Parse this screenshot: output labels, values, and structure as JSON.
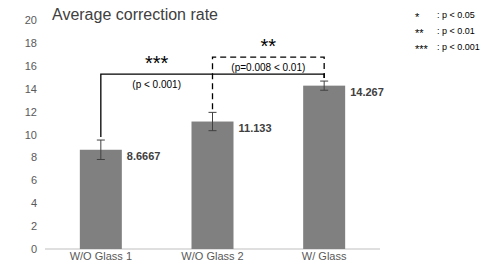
{
  "chart_data": {
    "type": "bar",
    "title": "Average correction rate",
    "categories": [
      "W/O Glass 1",
      "W/O Glass 2",
      "W/ Glass"
    ],
    "values": [
      8.6667,
      11.133,
      14.267
    ],
    "errors": [
      0.85,
      0.8,
      0.4
    ],
    "color": "#808080",
    "ylim": [
      0,
      20
    ],
    "yticks": [
      0,
      2,
      4,
      6,
      8,
      10,
      12,
      14,
      16,
      18,
      20
    ],
    "grid": false,
    "data_labels": true,
    "annotations": [
      {
        "from": 0,
        "to": 2,
        "stars": "***",
        "label": "(p < 0.001)",
        "line_style": "solid"
      },
      {
        "from": 1,
        "to": 2,
        "stars": "**",
        "label": "(p=0.008 < 0.01)",
        "line_style": "dashed"
      }
    ],
    "significance_key": [
      {
        "symbol": "*",
        "label": ": p < 0.05"
      },
      {
        "symbol": "**",
        "label": ": p < 0.01"
      },
      {
        "symbol": "***",
        "label": ": p < 0.001"
      }
    ]
  }
}
